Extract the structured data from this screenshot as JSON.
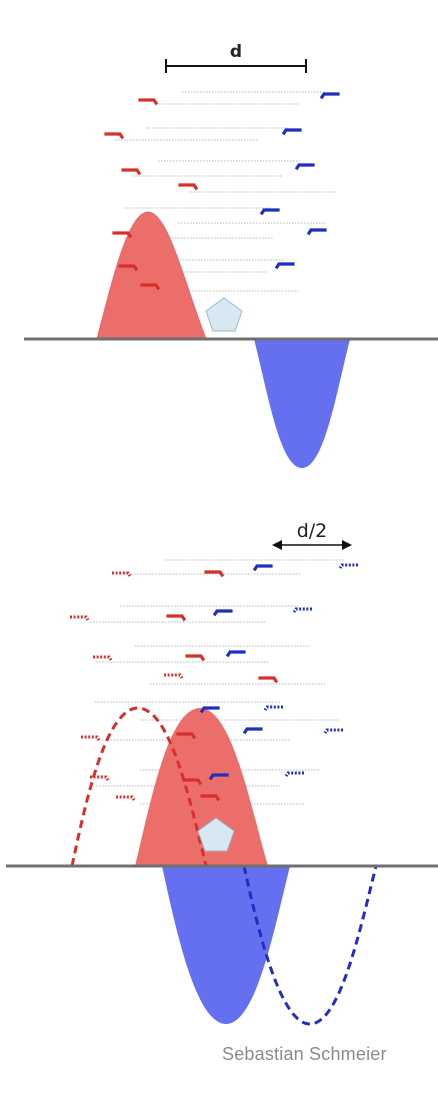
{
  "top_panel": {
    "distance_label": "d"
  },
  "bottom_panel": {
    "distance_label": "d/2"
  },
  "credit": "Sebastian Schmeier",
  "colors": {
    "red_fill": "#ec6e6b",
    "blue_fill": "#6470ef",
    "red_stroke": "#d7302a",
    "blue_stroke": "#1f2fbf",
    "pentagon": "#d7e8f2",
    "baseline": "#6f6f6f"
  }
}
